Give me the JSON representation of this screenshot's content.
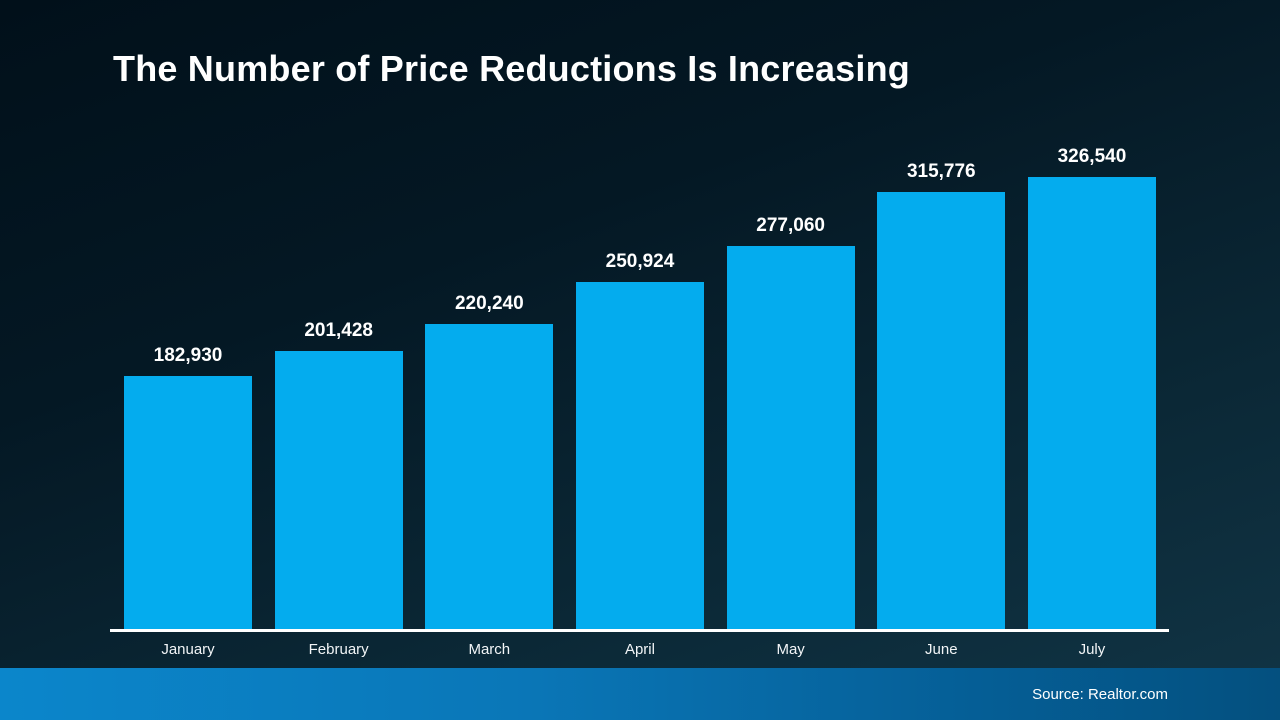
{
  "title": "The Number of Price Reductions Is Increasing",
  "footer": {
    "source": "Source: Realtor.com"
  },
  "colors": {
    "bar": "#04ACEE",
    "background_top": "#02131d",
    "background_bottom": "#113546",
    "footer_left": "#0B86CB",
    "footer_right": "#04507F",
    "axis": "#FFFFFF",
    "text": "#FFFFFF"
  },
  "chart_data": {
    "type": "bar",
    "categories": [
      "January",
      "February",
      "March",
      "April",
      "May",
      "June",
      "July"
    ],
    "values": [
      182930,
      201428,
      220240,
      250924,
      277060,
      315776,
      326540
    ],
    "value_labels": [
      "182,930",
      "201,428",
      "220,240",
      "250,924",
      "277,060",
      "315,776",
      "326,540"
    ],
    "title": "The Number of Price Reductions Is Increasing",
    "xlabel": "",
    "ylabel": "",
    "ylim": [
      0,
      340000
    ],
    "grid": false,
    "legend": "none"
  }
}
